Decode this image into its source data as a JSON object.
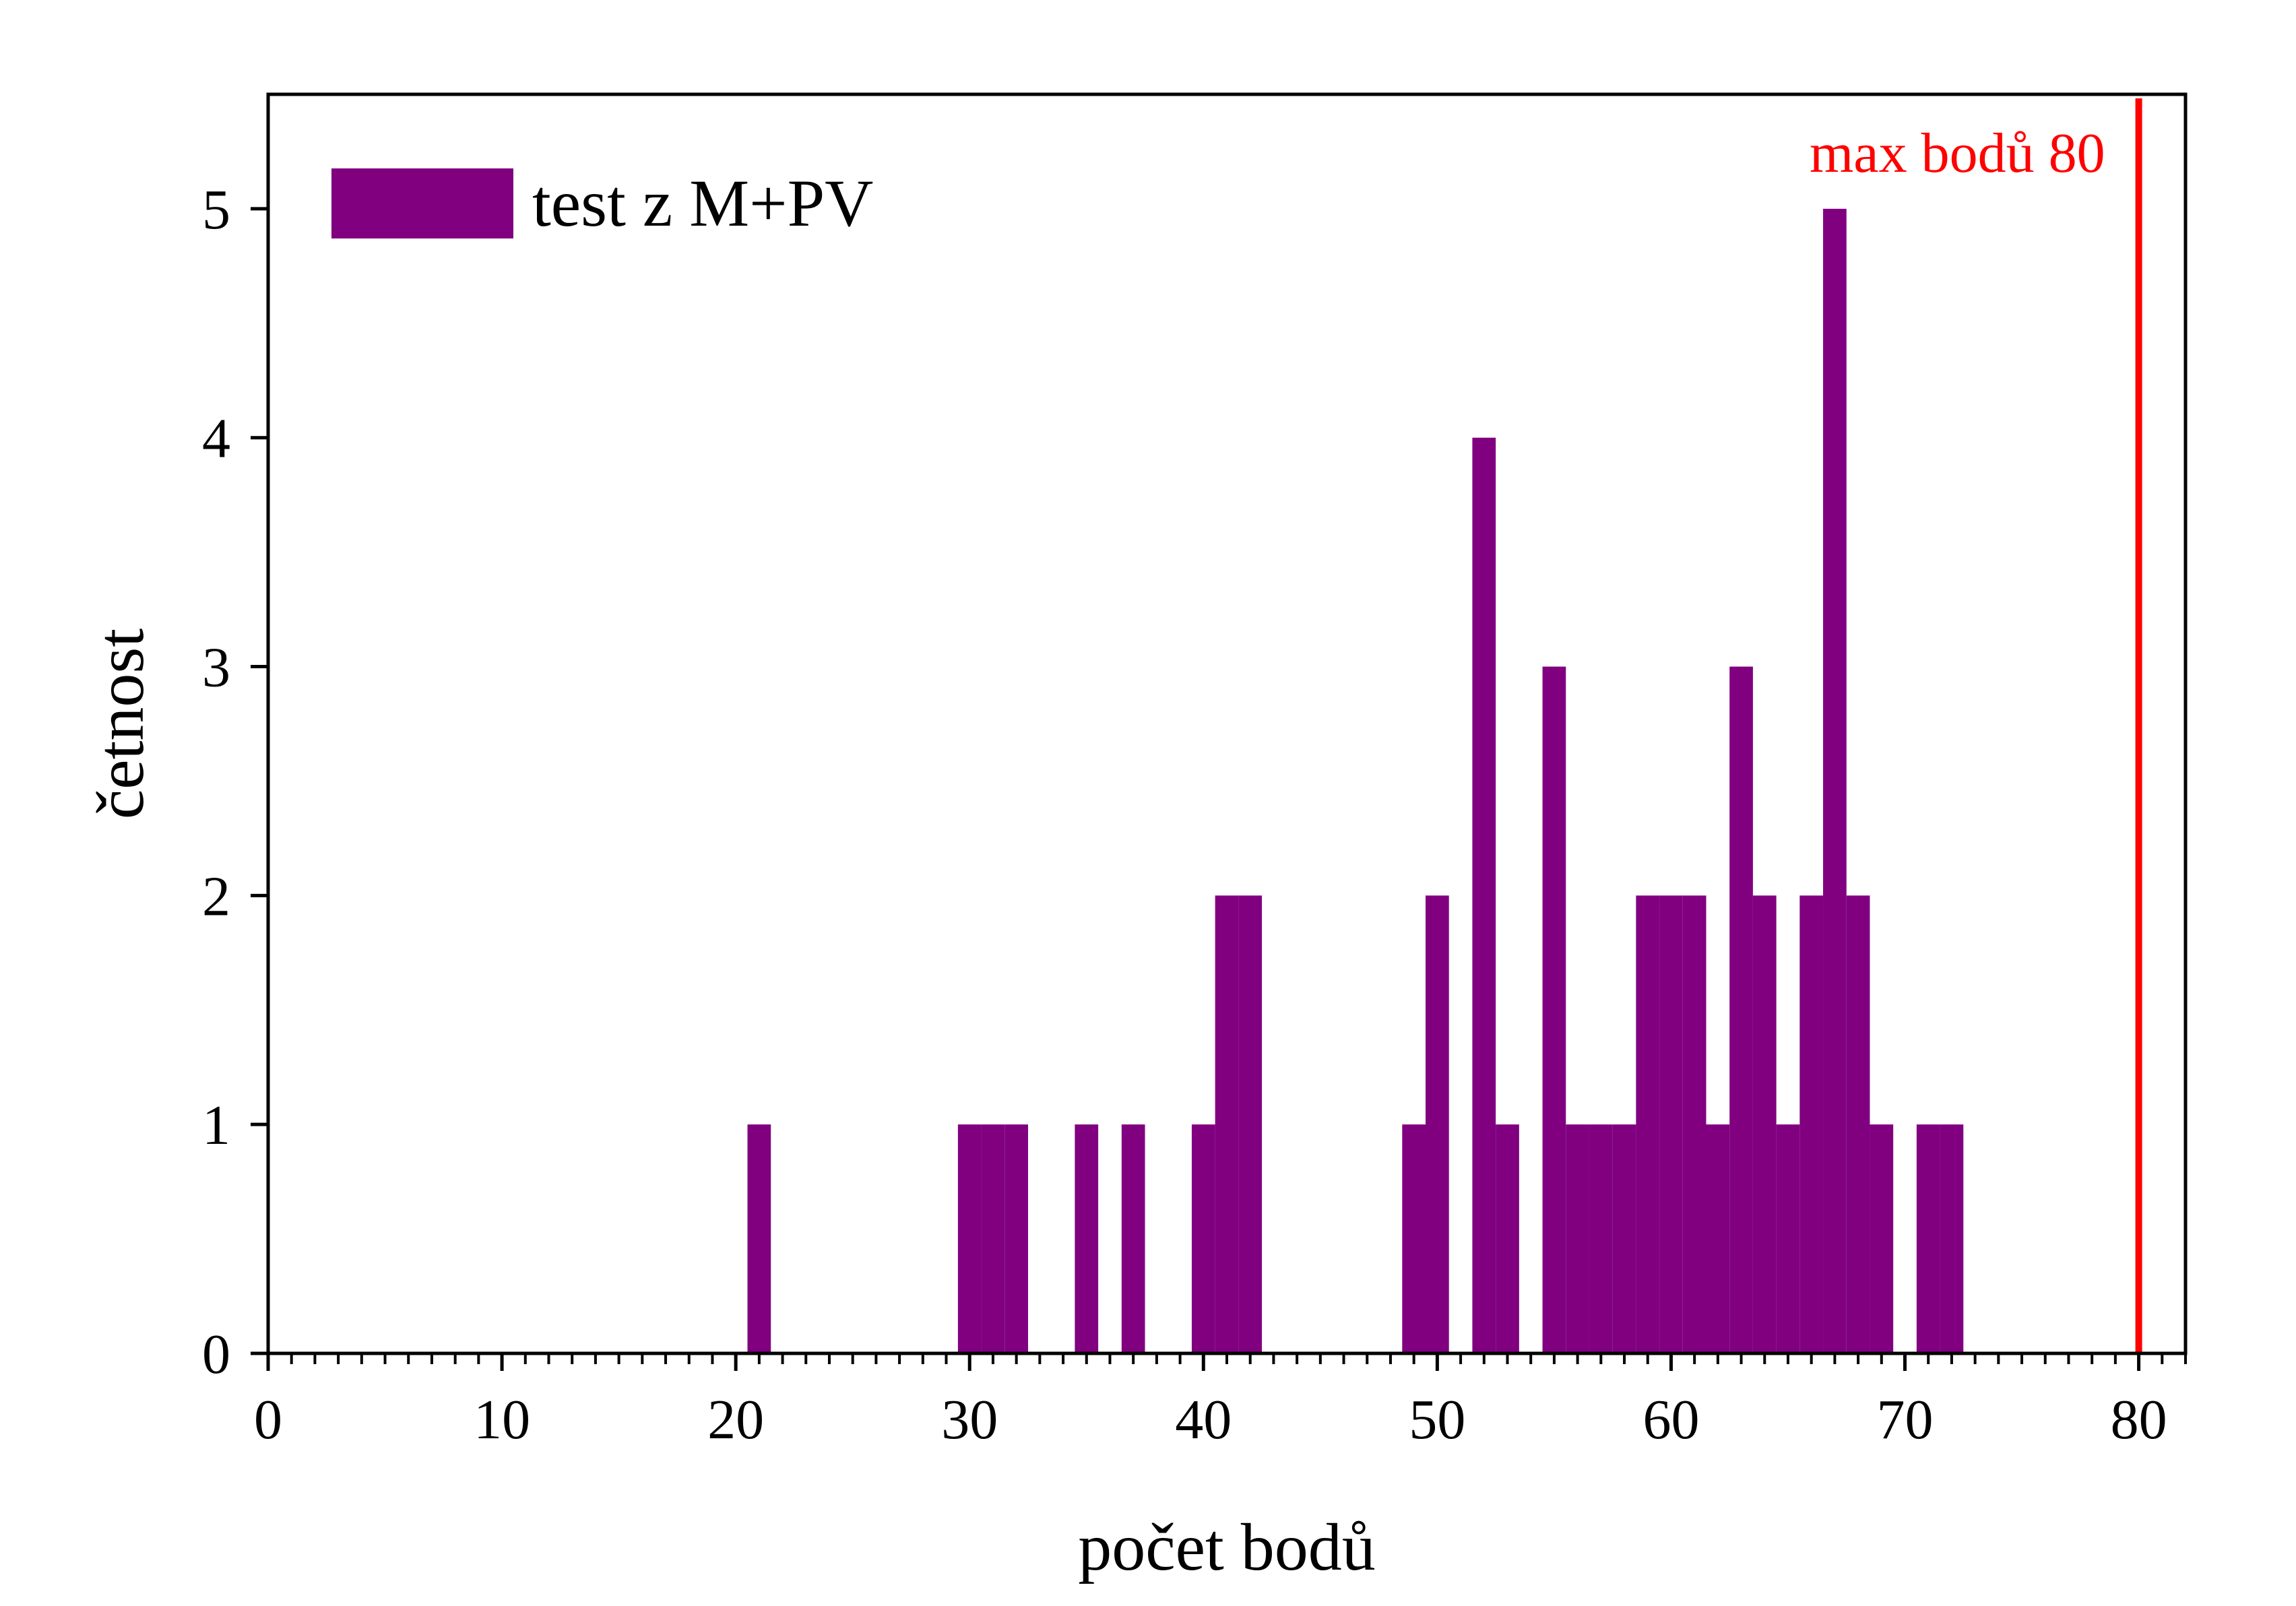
{
  "chart_data": {
    "type": "bar",
    "title": "",
    "xlabel": "počet bodů",
    "ylabel": "četnost",
    "xlim": [
      0,
      82
    ],
    "ylim": [
      0,
      5.5
    ],
    "x_ticks": [
      "0",
      "10",
      "20",
      "30",
      "40",
      "50",
      "60",
      "70",
      "80"
    ],
    "y_ticks": [
      "0",
      "1",
      "2",
      "3",
      "4",
      "5"
    ],
    "grid": false,
    "legend_position": "top-left",
    "series": [
      {
        "name": "test z M+PV",
        "color": "#800080",
        "points": [
          {
            "x": 21,
            "y": 1
          },
          {
            "x": 30,
            "y": 1
          },
          {
            "x": 31,
            "y": 1
          },
          {
            "x": 32,
            "y": 1
          },
          {
            "x": 35,
            "y": 1
          },
          {
            "x": 37,
            "y": 1
          },
          {
            "x": 40,
            "y": 1
          },
          {
            "x": 41,
            "y": 2
          },
          {
            "x": 42,
            "y": 2
          },
          {
            "x": 49,
            "y": 1
          },
          {
            "x": 50,
            "y": 2
          },
          {
            "x": 52,
            "y": 4
          },
          {
            "x": 53,
            "y": 1
          },
          {
            "x": 55,
            "y": 3
          },
          {
            "x": 56,
            "y": 1
          },
          {
            "x": 57,
            "y": 1
          },
          {
            "x": 58,
            "y": 1
          },
          {
            "x": 59,
            "y": 2
          },
          {
            "x": 60,
            "y": 2
          },
          {
            "x": 61,
            "y": 2
          },
          {
            "x": 62,
            "y": 1
          },
          {
            "x": 63,
            "y": 3
          },
          {
            "x": 64,
            "y": 2
          },
          {
            "x": 65,
            "y": 1
          },
          {
            "x": 66,
            "y": 2
          },
          {
            "x": 67,
            "y": 5
          },
          {
            "x": 68,
            "y": 2
          },
          {
            "x": 69,
            "y": 1
          },
          {
            "x": 71,
            "y": 1
          },
          {
            "x": 72,
            "y": 1
          }
        ]
      }
    ],
    "reference_line": {
      "x": 80,
      "label": "max bodů 80",
      "color": "#ff0000"
    }
  }
}
